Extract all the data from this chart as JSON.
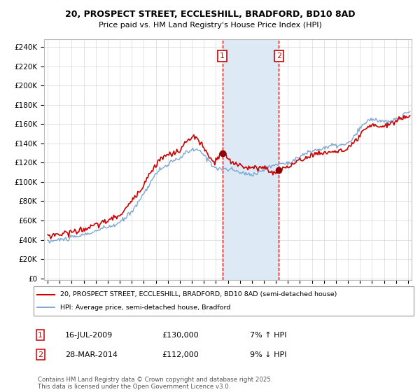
{
  "title": "20, PROSPECT STREET, ECCLESHILL, BRADFORD, BD10 8AD",
  "subtitle": "Price paid vs. HM Land Registry's House Price Index (HPI)",
  "yticks": [
    0,
    20000,
    40000,
    60000,
    80000,
    100000,
    120000,
    140000,
    160000,
    180000,
    200000,
    220000,
    240000
  ],
  "ylim": [
    -2000,
    248000
  ],
  "sale1_date": "16-JUL-2009",
  "sale1_price": 130000,
  "sale1_hpi": "7% ↑ HPI",
  "sale2_date": "28-MAR-2014",
  "sale2_price": 112000,
  "sale2_hpi": "9% ↓ HPI",
  "sale1_x": 2009.54,
  "sale2_x": 2014.24,
  "shade_color": "#ddeaf5",
  "vline_color": "#cc0000",
  "hpi_line_color": "#6699cc",
  "price_line_color": "#cc0000",
  "legend_entry1": "20, PROSPECT STREET, ECCLESHILL, BRADFORD, BD10 8AD (semi-detached house)",
  "legend_entry2": "HPI: Average price, semi-detached house, Bradford",
  "footer": "Contains HM Land Registry data © Crown copyright and database right 2025.\nThis data is licensed under the Open Government Licence v3.0.",
  "background_color": "#ffffff",
  "grid_color": "#d8d8d8",
  "xlim_left": 1994.7,
  "xlim_right": 2025.3
}
